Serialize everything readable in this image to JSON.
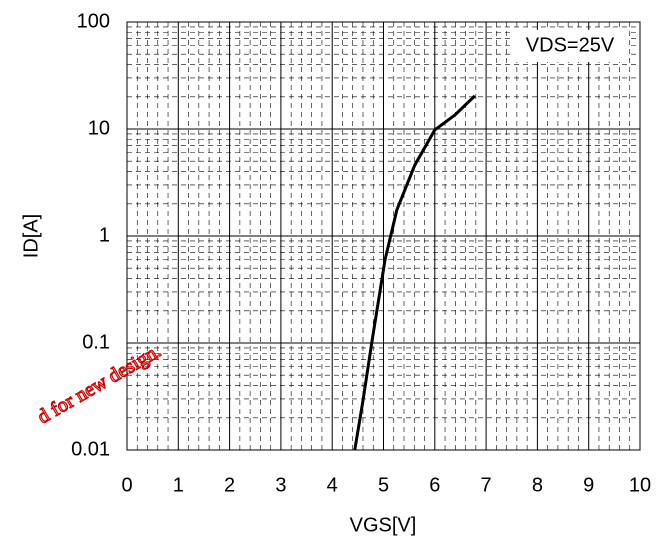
{
  "chart_data": {
    "type": "line",
    "xlabel": "VGS[V]",
    "ylabel": "ID[A]",
    "annotation": "VDS=25V",
    "watermark": "d for new design.",
    "x": [
      4.44,
      4.6,
      4.78,
      5.03,
      5.26,
      5.61,
      6.0,
      6.39,
      6.78
    ],
    "series": [
      {
        "color": "#000000",
        "values": [
          0.01,
          0.029,
          0.107,
          0.6,
          1.75,
          4.6,
          9.8,
          13.5,
          20.4
        ]
      }
    ],
    "xlim": [
      0,
      10
    ],
    "xticks": [
      0,
      1,
      2,
      3,
      4,
      5,
      6,
      7,
      8,
      9,
      10
    ],
    "ylim": [
      0.01,
      100
    ],
    "yticks": [
      0.01,
      0.1,
      1,
      10,
      100
    ],
    "yscale": "log",
    "grid": true,
    "minor_grid": true
  }
}
